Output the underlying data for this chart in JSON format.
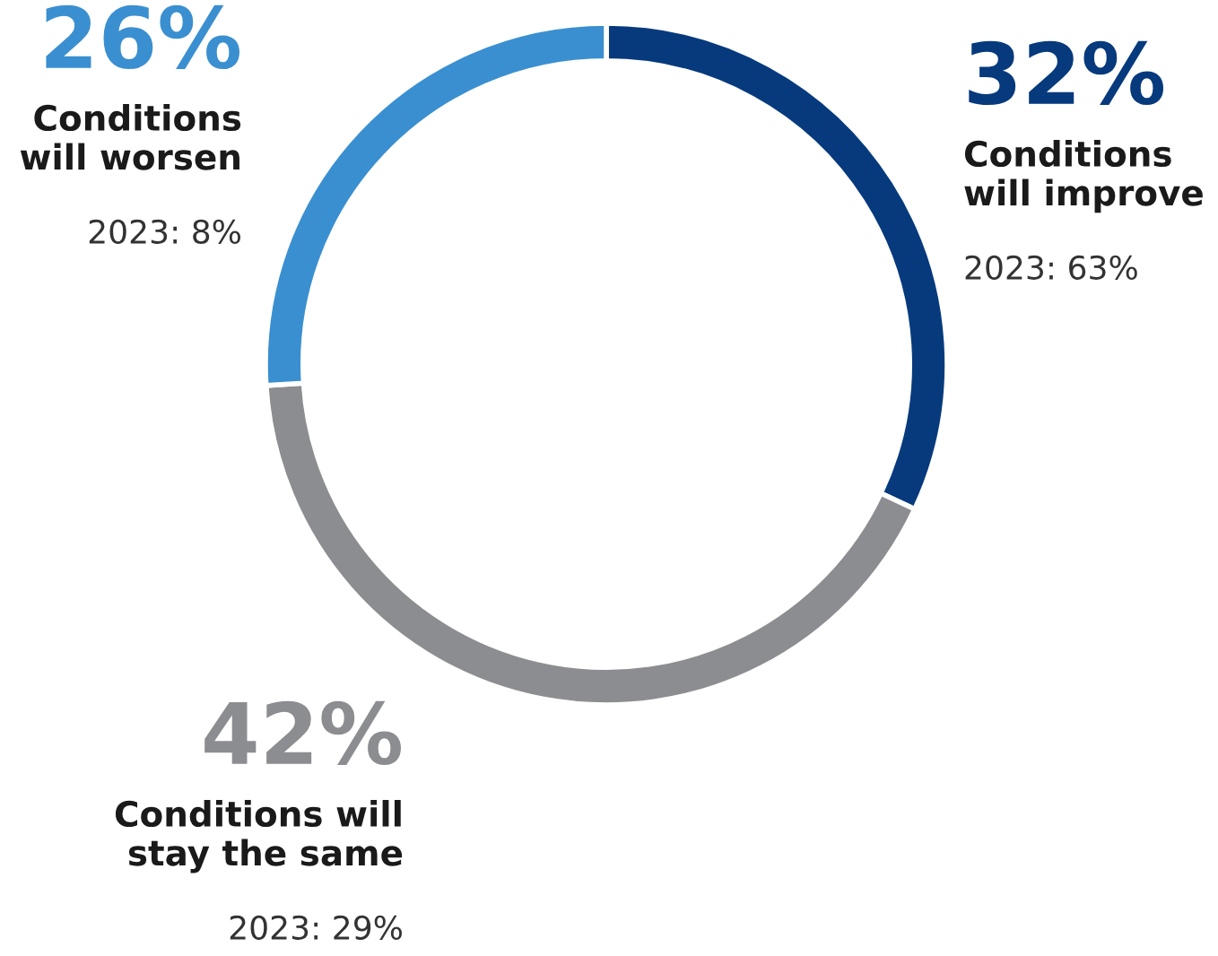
{
  "chart_data": {
    "type": "donut",
    "categories": [
      "Conditions\nwill improve",
      "Conditions will\nstay the same",
      "Conditions\nwill worsen"
    ],
    "values": [
      32,
      42,
      26
    ],
    "colors": [
      "#063a7d",
      "#8c8d90",
      "#3a8fd0"
    ],
    "value_labels": [
      "32%",
      "42%",
      "26%"
    ],
    "annotations": [
      "2023: 63%",
      "2023: 29%",
      "2023: 8%"
    ]
  }
}
